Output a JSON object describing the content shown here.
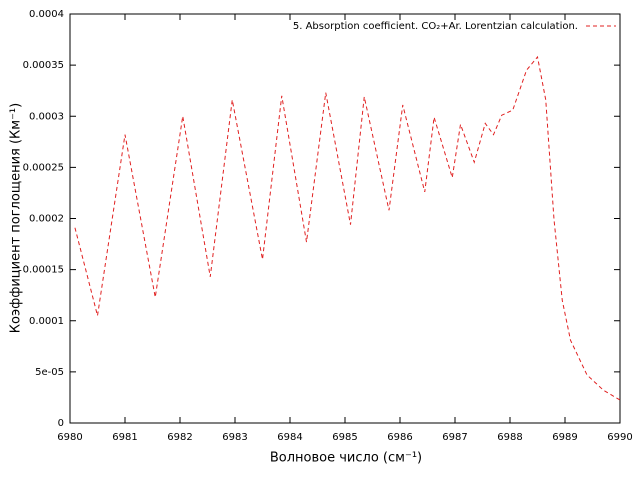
{
  "chart_data": {
    "type": "line",
    "xlabel": "Волновое число (см⁻¹)",
    "ylabel": "Коэффициент поглощения (Км⁻¹)",
    "legend": "top right",
    "grid": false,
    "xlim": [
      6980,
      6990
    ],
    "ylim": [
      0,
      0.0004
    ],
    "xticks": [
      6980,
      6981,
      6982,
      6983,
      6984,
      6985,
      6986,
      6987,
      6988,
      6989,
      6990
    ],
    "yticks": [
      0,
      {
        "value": 5e-05,
        "label": "5e-05"
      },
      0.0001,
      0.00015,
      0.0002,
      0.00025,
      0.0003,
      0.00035,
      0.0004
    ],
    "x": [
      6980.09,
      6980.5,
      6981.0,
      6981.55,
      6982.05,
      6982.55,
      6982.95,
      6983.5,
      6983.85,
      6984.3,
      6984.65,
      6985.1,
      6985.35,
      6985.8,
      6986.05,
      6986.45,
      6986.62,
      6986.95,
      6987.1,
      6987.35,
      6987.55,
      6987.7,
      6987.85,
      6988.05,
      6988.3,
      6988.5,
      6988.65,
      6988.8,
      6988.95,
      6989.1,
      6989.4,
      6989.7,
      6990
    ],
    "series": [
      {
        "name": "5. Absorption coefficient. CO₂+Ar. Lorentzian calculation.",
        "color": "#e02020",
        "values": [
          0.000191,
          0.000105,
          0.000282,
          0.000123,
          0.0003,
          0.000143,
          0.000316,
          0.00016,
          0.00032,
          0.000177,
          0.000323,
          0.000194,
          0.000319,
          0.000208,
          0.000311,
          0.000226,
          0.000299,
          0.00024,
          0.000292,
          0.000255,
          0.000293,
          0.000282,
          0.000301,
          0.000306,
          0.000345,
          0.000358,
          0.000316,
          0.000199,
          0.00012,
          8.1e-05,
          4.7e-05,
          3.2e-05,
          2.25e-05
        ]
      }
    ]
  }
}
